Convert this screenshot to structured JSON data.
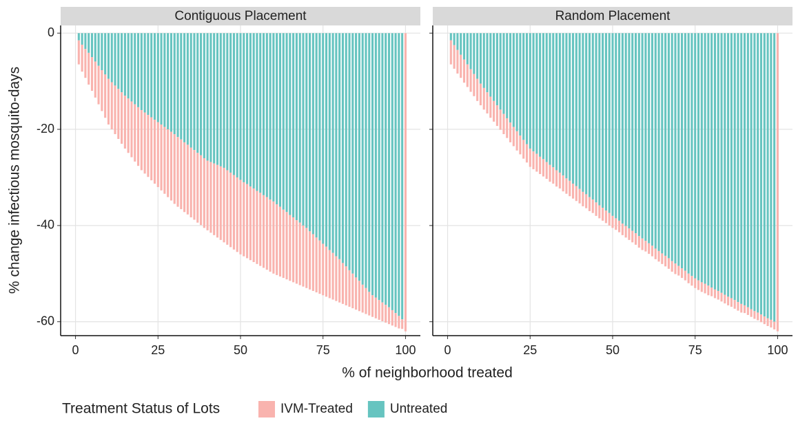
{
  "chart_data": {
    "type": "bar",
    "stacked": true,
    "x_label": "% of neighborhood treated",
    "y_label": "% change infectious mosquito-days",
    "legend_title": "Treatment Status of Lots",
    "legend_position": "bottom",
    "grid": true,
    "series": [
      {
        "name": "IVM-Treated",
        "color": "#f9b3ae"
      },
      {
        "name": "Untreated",
        "color": "#66c4c0"
      }
    ],
    "x": [
      1,
      2,
      3,
      4,
      5,
      6,
      7,
      8,
      9,
      10,
      11,
      12,
      13,
      14,
      15,
      16,
      17,
      18,
      19,
      20,
      21,
      22,
      23,
      24,
      25,
      26,
      27,
      28,
      29,
      30,
      31,
      32,
      33,
      34,
      35,
      36,
      37,
      38,
      39,
      40,
      41,
      42,
      43,
      44,
      45,
      46,
      47,
      48,
      49,
      50,
      51,
      52,
      53,
      54,
      55,
      56,
      57,
      58,
      59,
      60,
      61,
      62,
      63,
      64,
      65,
      66,
      67,
      68,
      69,
      70,
      71,
      72,
      73,
      74,
      75,
      76,
      77,
      78,
      79,
      80,
      81,
      82,
      83,
      84,
      85,
      86,
      87,
      88,
      89,
      90,
      91,
      92,
      93,
      94,
      95,
      96,
      97,
      98,
      99,
      100
    ],
    "xlim": [
      -4.5,
      104.5
    ],
    "xticks": [
      0,
      25,
      50,
      75,
      100
    ],
    "ylim": [
      -62.9,
      1.6
    ],
    "yticks": [
      0,
      -20,
      -40,
      -60
    ],
    "facets": [
      {
        "title": "Contiguous Placement",
        "series": [
          {
            "values": [
              -5.0,
              -5.6,
              -6.0,
              -6.6,
              -7.0,
              -7.5,
              -8.0,
              -8.5,
              -9.0,
              -9.5,
              -9.8,
              -10.1,
              -10.4,
              -10.7,
              -11.0,
              -11.3,
              -11.6,
              -11.9,
              -12.2,
              -12.5,
              -12.7,
              -12.9,
              -13.1,
              -13.3,
              -13.5,
              -13.7,
              -13.9,
              -14.1,
              -14.3,
              -14.5,
              -14.5,
              -14.5,
              -14.5,
              -14.5,
              -14.5,
              -14.5,
              -14.5,
              -14.5,
              -14.5,
              -14.5,
              -14.7,
              -14.9,
              -15.1,
              -15.3,
              -15.5,
              -15.5,
              -15.5,
              -15.5,
              -15.5,
              -15.5,
              -15.4,
              -15.4,
              -15.3,
              -15.3,
              -15.2,
              -15.2,
              -15.1,
              -15.1,
              -15.0,
              -15.0,
              -14.7,
              -14.5,
              -14.2,
              -14.0,
              -13.7,
              -13.5,
              -13.2,
              -13.0,
              -12.7,
              -12.5,
              -12.1,
              -11.8,
              -11.4,
              -11.1,
              -10.7,
              -10.4,
              -10.0,
              -9.7,
              -9.3,
              -9.0,
              -8.5,
              -8.1,
              -7.6,
              -7.2,
              -6.7,
              -6.3,
              -5.8,
              -5.4,
              -4.9,
              -4.5,
              -4.3,
              -4.1,
              -3.9,
              -3.7,
              -3.5,
              -3.2,
              -2.9,
              -2.6,
              -2.0,
              -62.0
            ]
          },
          {
            "values": [
              -1.5,
              -2.4,
              -3.3,
              -4.1,
              -5.0,
              -5.9,
              -6.8,
              -7.7,
              -8.6,
              -9.5,
              -10.2,
              -10.9,
              -11.6,
              -12.3,
              -13.0,
              -13.6,
              -14.2,
              -14.8,
              -15.4,
              -16.0,
              -16.5,
              -17.0,
              -17.5,
              -18.0,
              -18.5,
              -19.0,
              -19.5,
              -20.0,
              -20.5,
              -21.0,
              -21.6,
              -22.1,
              -22.7,
              -23.2,
              -23.8,
              -24.3,
              -24.9,
              -25.4,
              -26.0,
              -26.5,
              -26.8,
              -27.1,
              -27.4,
              -27.7,
              -28.0,
              -28.5,
              -29.0,
              -29.5,
              -30.0,
              -30.5,
              -31.0,
              -31.4,
              -31.9,
              -32.3,
              -32.8,
              -33.2,
              -33.7,
              -34.1,
              -34.6,
              -35.0,
              -35.6,
              -36.1,
              -36.7,
              -37.2,
              -37.8,
              -38.3,
              -38.9,
              -39.4,
              -40.0,
              -40.5,
              -41.2,
              -41.8,
              -42.5,
              -43.1,
              -43.8,
              -44.4,
              -45.1,
              -45.7,
              -46.4,
              -47.0,
              -47.8,
              -48.5,
              -49.3,
              -50.0,
              -50.8,
              -51.5,
              -52.3,
              -53.0,
              -53.8,
              -54.5,
              -55.0,
              -55.5,
              -56.0,
              -56.5,
              -57.0,
              -57.6,
              -58.2,
              -58.8,
              -59.5,
              0
            ]
          }
        ]
      },
      {
        "title": "Random Placement",
        "series": [
          {
            "values": [
              -5.0,
              -4.9,
              -4.9,
              -4.8,
              -4.8,
              -4.7,
              -4.7,
              -4.6,
              -4.6,
              -4.5,
              -4.5,
              -4.4,
              -4.4,
              -4.3,
              -4.3,
              -4.2,
              -4.2,
              -4.1,
              -4.1,
              -4.0,
              -4.0,
              -3.9,
              -3.9,
              -3.8,
              -3.8,
              -3.7,
              -3.7,
              -3.6,
              -3.6,
              -3.5,
              -3.5,
              -3.4,
              -3.4,
              -3.3,
              -3.3,
              -3.2,
              -3.2,
              -3.1,
              -3.1,
              -3.0,
              -3.0,
              -2.9,
              -2.9,
              -2.8,
              -2.8,
              -2.7,
              -2.7,
              -2.6,
              -2.6,
              -2.5,
              -2.4,
              -2.4,
              -2.4,
              -2.4,
              -2.4,
              -2.4,
              -2.4,
              -2.4,
              -2.4,
              -2.2,
              -2.2,
              -2.2,
              -2.2,
              -2.2,
              -2.2,
              -2.2,
              -2.2,
              -2.2,
              -2.2,
              -2.0,
              -2.0,
              -2.0,
              -2.0,
              -2.0,
              -2.0,
              -2.0,
              -2.0,
              -2.0,
              -2.0,
              -1.8,
              -1.8,
              -1.8,
              -1.8,
              -1.8,
              -1.8,
              -1.8,
              -1.8,
              -1.8,
              -1.8,
              -1.6,
              -1.6,
              -1.6,
              -1.6,
              -1.6,
              -1.6,
              -1.6,
              -1.6,
              -1.6,
              -1.6,
              -62.0
            ]
          },
          {
            "values": [
              -1.5,
              -2.5,
              -3.5,
              -4.5,
              -5.5,
              -6.5,
              -7.5,
              -8.5,
              -9.5,
              -10.5,
              -11.4,
              -12.3,
              -13.2,
              -14.1,
              -15.0,
              -15.9,
              -16.8,
              -17.7,
              -18.6,
              -19.5,
              -20.4,
              -21.3,
              -22.2,
              -23.1,
              -24.0,
              -24.6,
              -25.1,
              -25.7,
              -26.2,
              -26.8,
              -27.4,
              -27.9,
              -28.5,
              -29.0,
              -29.6,
              -30.2,
              -30.7,
              -31.3,
              -31.8,
              -32.4,
              -33.0,
              -33.5,
              -34.1,
              -34.6,
              -35.2,
              -35.8,
              -36.3,
              -36.9,
              -37.4,
              -38.0,
              -38.5,
              -39.0,
              -39.6,
              -40.1,
              -40.6,
              -41.1,
              -41.6,
              -42.2,
              -42.7,
              -43.2,
              -43.7,
              -44.2,
              -44.8,
              -45.3,
              -45.8,
              -46.3,
              -46.8,
              -47.4,
              -47.9,
              -48.4,
              -48.9,
              -49.4,
              -50.0,
              -50.5,
              -51.0,
              -51.4,
              -51.8,
              -52.1,
              -52.5,
              -52.9,
              -53.3,
              -53.6,
              -54.0,
              -54.4,
              -54.8,
              -55.1,
              -55.5,
              -55.9,
              -56.3,
              -56.6,
              -57.0,
              -57.4,
              -57.8,
              -58.1,
              -58.5,
              -58.9,
              -59.3,
              -59.6,
              -60.0,
              0
            ]
          }
        ]
      }
    ]
  }
}
